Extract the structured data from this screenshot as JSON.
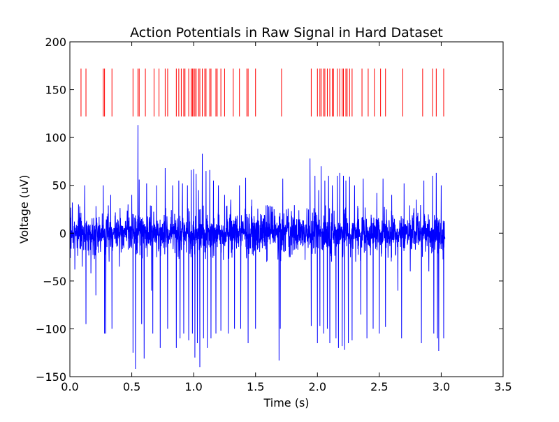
{
  "chart_data": {
    "type": "line",
    "title": "Action Potentials in Raw Signal in Hard Dataset",
    "xlabel": "Time (s)",
    "ylabel": "Voltage (uV)",
    "xlim": [
      0.0,
      3.5
    ],
    "ylim": [
      -150,
      200
    ],
    "x_ticks": [
      "0.0",
      "0.5",
      "1.0",
      "1.5",
      "2.0",
      "2.5",
      "3.0",
      "3.5"
    ],
    "y_ticks": [
      "−150",
      "−100",
      "−50",
      "0",
      "50",
      "100",
      "150",
      "200"
    ],
    "x_tick_values": [
      0.0,
      0.5,
      1.0,
      1.5,
      2.0,
      2.5,
      3.0,
      3.5
    ],
    "y_tick_values": [
      -150,
      -100,
      -50,
      0,
      50,
      100,
      150,
      200
    ],
    "grid": false,
    "colors": {
      "signal": "#0000ff",
      "spikes": "#ff0000",
      "axes": "#000000",
      "background": "#ffffff"
    },
    "signal": {
      "x_range": [
        0.0,
        3.03
      ],
      "noise_band": [
        -25,
        25
      ],
      "spike_extremes": [
        {
          "x": 0.02,
          "y": 32
        },
        {
          "x": 0.04,
          "y": -38
        },
        {
          "x": 0.07,
          "y": 30
        },
        {
          "x": 0.1,
          "y": -35
        },
        {
          "x": 0.12,
          "y": 50
        },
        {
          "x": 0.13,
          "y": -95
        },
        {
          "x": 0.17,
          "y": -42
        },
        {
          "x": 0.21,
          "y": -65
        },
        {
          "x": 0.27,
          "y": 50
        },
        {
          "x": 0.28,
          "y": -105
        },
        {
          "x": 0.29,
          "y": -105
        },
        {
          "x": 0.33,
          "y": 40
        },
        {
          "x": 0.34,
          "y": -100
        },
        {
          "x": 0.4,
          "y": -35
        },
        {
          "x": 0.47,
          "y": 30
        },
        {
          "x": 0.5,
          "y": 40
        },
        {
          "x": 0.51,
          "y": -125
        },
        {
          "x": 0.53,
          "y": -142
        },
        {
          "x": 0.55,
          "y": 113
        },
        {
          "x": 0.56,
          "y": 56
        },
        {
          "x": 0.58,
          "y": -95
        },
        {
          "x": 0.6,
          "y": -131
        },
        {
          "x": 0.62,
          "y": 52
        },
        {
          "x": 0.66,
          "y": -60
        },
        {
          "x": 0.67,
          "y": -105
        },
        {
          "x": 0.7,
          "y": 50
        },
        {
          "x": 0.73,
          "y": -120
        },
        {
          "x": 0.77,
          "y": 68
        },
        {
          "x": 0.79,
          "y": -100
        },
        {
          "x": 0.83,
          "y": 50
        },
        {
          "x": 0.86,
          "y": -120
        },
        {
          "x": 0.88,
          "y": 55
        },
        {
          "x": 0.89,
          "y": -110
        },
        {
          "x": 0.91,
          "y": 52
        },
        {
          "x": 0.92,
          "y": -105
        },
        {
          "x": 0.95,
          "y": 50
        },
        {
          "x": 0.96,
          "y": -112
        },
        {
          "x": 0.98,
          "y": 66
        },
        {
          "x": 0.99,
          "y": -105
        },
        {
          "x": 1.0,
          "y": 67
        },
        {
          "x": 1.01,
          "y": -130
        },
        {
          "x": 1.02,
          "y": 62
        },
        {
          "x": 1.03,
          "y": -115
        },
        {
          "x": 1.04,
          "y": 45
        },
        {
          "x": 1.05,
          "y": -140
        },
        {
          "x": 1.07,
          "y": 83
        },
        {
          "x": 1.08,
          "y": -110
        },
        {
          "x": 1.1,
          "y": 65
        },
        {
          "x": 1.11,
          "y": -120
        },
        {
          "x": 1.13,
          "y": 66
        },
        {
          "x": 1.14,
          "y": -110
        },
        {
          "x": 1.16,
          "y": 55
        },
        {
          "x": 1.18,
          "y": -105
        },
        {
          "x": 1.2,
          "y": 50
        },
        {
          "x": 1.22,
          "y": -102
        },
        {
          "x": 1.25,
          "y": 40
        },
        {
          "x": 1.28,
          "y": -105
        },
        {
          "x": 1.3,
          "y": 35
        },
        {
          "x": 1.33,
          "y": -100
        },
        {
          "x": 1.37,
          "y": 50
        },
        {
          "x": 1.38,
          "y": -100
        },
        {
          "x": 1.42,
          "y": 58
        },
        {
          "x": 1.44,
          "y": -115
        },
        {
          "x": 1.47,
          "y": 35
        },
        {
          "x": 1.5,
          "y": -100
        },
        {
          "x": 1.54,
          "y": 20
        },
        {
          "x": 1.59,
          "y": -30
        },
        {
          "x": 1.65,
          "y": 25
        },
        {
          "x": 1.69,
          "y": -133
        },
        {
          "x": 1.7,
          "y": -100
        },
        {
          "x": 1.72,
          "y": 57
        },
        {
          "x": 1.78,
          "y": -25
        },
        {
          "x": 1.85,
          "y": 24
        },
        {
          "x": 1.9,
          "y": -28
        },
        {
          "x": 1.94,
          "y": 78
        },
        {
          "x": 1.95,
          "y": -97
        },
        {
          "x": 1.98,
          "y": 60
        },
        {
          "x": 2.0,
          "y": -115
        },
        {
          "x": 2.01,
          "y": 45
        },
        {
          "x": 2.02,
          "y": -97
        },
        {
          "x": 2.03,
          "y": 70
        },
        {
          "x": 2.05,
          "y": -105
        },
        {
          "x": 2.06,
          "y": 55
        },
        {
          "x": 2.08,
          "y": -100
        },
        {
          "x": 2.09,
          "y": 60
        },
        {
          "x": 2.1,
          "y": -115
        },
        {
          "x": 2.12,
          "y": 50
        },
        {
          "x": 2.15,
          "y": -110
        },
        {
          "x": 2.16,
          "y": 60
        },
        {
          "x": 2.17,
          "y": -120
        },
        {
          "x": 2.18,
          "y": 63
        },
        {
          "x": 2.2,
          "y": -118
        },
        {
          "x": 2.21,
          "y": 60
        },
        {
          "x": 2.22,
          "y": -122
        },
        {
          "x": 2.23,
          "y": 55
        },
        {
          "x": 2.25,
          "y": -115
        },
        {
          "x": 2.26,
          "y": 59
        },
        {
          "x": 2.28,
          "y": -112
        },
        {
          "x": 2.3,
          "y": 50
        },
        {
          "x": 2.35,
          "y": -85
        },
        {
          "x": 2.37,
          "y": 57
        },
        {
          "x": 2.4,
          "y": -110
        },
        {
          "x": 2.45,
          "y": -100
        },
        {
          "x": 2.48,
          "y": 42
        },
        {
          "x": 2.5,
          "y": -105
        },
        {
          "x": 2.53,
          "y": 57
        },
        {
          "x": 2.55,
          "y": -98
        },
        {
          "x": 2.6,
          "y": 40
        },
        {
          "x": 2.65,
          "y": -60
        },
        {
          "x": 2.68,
          "y": -110
        },
        {
          "x": 2.7,
          "y": 52
        },
        {
          "x": 2.75,
          "y": -40
        },
        {
          "x": 2.8,
          "y": 35
        },
        {
          "x": 2.84,
          "y": -115
        },
        {
          "x": 2.86,
          "y": 55
        },
        {
          "x": 2.9,
          "y": -40
        },
        {
          "x": 2.93,
          "y": 60
        },
        {
          "x": 2.94,
          "y": -105
        },
        {
          "x": 2.96,
          "y": 63
        },
        {
          "x": 2.97,
          "y": -110
        },
        {
          "x": 2.98,
          "y": -123
        },
        {
          "x": 3.0,
          "y": 50
        },
        {
          "x": 3.02,
          "y": -110
        }
      ]
    },
    "spike_markers": {
      "y_range": [
        122,
        172
      ],
      "x": [
        0.09,
        0.13,
        0.27,
        0.28,
        0.34,
        0.51,
        0.55,
        0.56,
        0.61,
        0.68,
        0.72,
        0.77,
        0.79,
        0.86,
        0.88,
        0.9,
        0.92,
        0.93,
        0.96,
        0.98,
        0.99,
        1.0,
        1.01,
        1.02,
        1.04,
        1.05,
        1.07,
        1.09,
        1.1,
        1.13,
        1.14,
        1.18,
        1.19,
        1.22,
        1.25,
        1.32,
        1.37,
        1.43,
        1.44,
        1.5,
        1.71,
        1.95,
        2.0,
        2.02,
        2.03,
        2.05,
        2.06,
        2.08,
        2.1,
        2.12,
        2.13,
        2.16,
        2.18,
        2.2,
        2.21,
        2.23,
        2.24,
        2.26,
        2.28,
        2.36,
        2.41,
        2.46,
        2.51,
        2.55,
        2.69,
        2.85,
        2.93,
        2.96,
        3.02
      ]
    }
  }
}
